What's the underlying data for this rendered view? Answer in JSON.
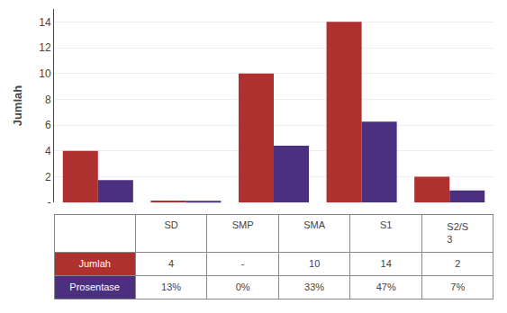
{
  "chart_data": {
    "type": "bar",
    "categories": [
      "SD",
      "SMP",
      "SMA",
      "S1",
      "S2/S\n3"
    ],
    "series": [
      {
        "name": "Jumlah",
        "color": "#B03030",
        "values": [
          4,
          0.15,
          10,
          14,
          2
        ],
        "value_labels": [
          "4",
          "-",
          "10",
          "14",
          "2"
        ]
      },
      {
        "name": "Prosentase",
        "color": "#4B3080",
        "values": [
          1.73,
          0.13,
          4.4,
          6.27,
          0.93
        ],
        "value_labels": [
          "13%",
          "0%",
          "33%",
          "47%",
          "7%"
        ]
      }
    ],
    "ylabel": "Jumlah",
    "ylim": [
      0,
      15
    ],
    "yticks": [
      {
        "value": 0,
        "label": "-"
      },
      2,
      4,
      6,
      8,
      10,
      12,
      14
    ],
    "grid": true,
    "tick_labels": "y"
  }
}
